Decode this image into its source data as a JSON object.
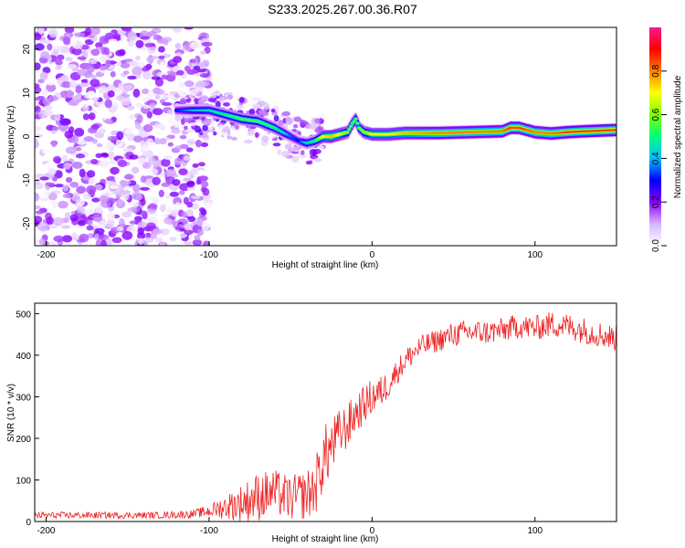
{
  "title": "S233.2025.267.00.36.R07",
  "chart_data": [
    {
      "type": "heatmap",
      "title": "S233.2025.267.00.36.R07",
      "xlabel": "Height of straight line (km)",
      "ylabel": "Frequency (Hz)",
      "xlim": [
        -207,
        150
      ],
      "ylim": [
        -25,
        25
      ],
      "xticks": [
        -200,
        -100,
        0,
        100
      ],
      "yticks": [
        -20,
        -10,
        0,
        10,
        20
      ],
      "colorbar": {
        "label": "Normalized spectral amplitude",
        "range": [
          0,
          1
        ],
        "ticks": [
          "0.0",
          "0.2",
          "0.4",
          "0.6",
          "0.8"
        ],
        "colormap": [
          "#ffffff",
          "#d8b4fe",
          "#8b00ff",
          "#0000ff",
          "#00bfff",
          "#00ff7f",
          "#7fff00",
          "#ffff00",
          "#ff8000",
          "#ff0000",
          "#ff1493"
        ]
      },
      "ridge": {
        "x": [
          -120,
          -110,
          -100,
          -90,
          -80,
          -70,
          -60,
          -55,
          -50,
          -45,
          -40,
          -35,
          -30,
          -25,
          -20,
          -15,
          -12,
          -10,
          -8,
          -5,
          0,
          10,
          20,
          40,
          60,
          80,
          85,
          90,
          100,
          110,
          120,
          130,
          150
        ],
        "freq": [
          6,
          6,
          6,
          5,
          4,
          3.5,
          2,
          1,
          0,
          -1,
          -1.5,
          -1,
          0,
          0,
          0.5,
          1,
          3,
          4,
          2,
          1,
          0.5,
          0.5,
          0.8,
          0.8,
          1,
          1.2,
          2,
          2,
          1,
          0.7,
          1,
          1.2,
          1.5
        ],
        "amplitude": [
          0.3,
          0.4,
          0.45,
          0.5,
          0.55,
          0.55,
          0.5,
          0.45,
          0.35,
          0.3,
          0.45,
          0.5,
          0.7,
          0.75,
          0.7,
          0.6,
          0.55,
          0.55,
          0.55,
          0.6,
          0.7,
          0.7,
          0.75,
          0.8,
          0.8,
          0.8,
          0.85,
          0.85,
          0.8,
          0.8,
          0.85,
          0.85,
          0.85
        ]
      },
      "noise_region_x": [
        -207,
        -100
      ]
    },
    {
      "type": "line",
      "title": "",
      "xlabel": "Height of straight line (km)",
      "ylabel": "SNR (10 * v/v)",
      "xlim": [
        -207,
        150
      ],
      "ylim": [
        0,
        525
      ],
      "xticks": [
        -200,
        -100,
        0,
        100
      ],
      "yticks": [
        0,
        100,
        200,
        300,
        400,
        500
      ],
      "series": [
        {
          "name": "SNR",
          "color": "#ee2222",
          "x": [
            -207,
            -190,
            -170,
            -150,
            -130,
            -110,
            -100,
            -90,
            -80,
            -70,
            -60,
            -50,
            -40,
            -35,
            -30,
            -25,
            -20,
            -15,
            -10,
            -5,
            0,
            5,
            10,
            15,
            20,
            25,
            30,
            40,
            50,
            60,
            70,
            80,
            90,
            100,
            110,
            120,
            130,
            140,
            150
          ],
          "y": [
            15,
            15,
            15,
            15,
            15,
            18,
            25,
            35,
            45,
            60,
            70,
            55,
            65,
            80,
            150,
            180,
            210,
            230,
            260,
            280,
            300,
            310,
            330,
            360,
            385,
            405,
            420,
            435,
            450,
            455,
            455,
            460,
            470,
            465,
            475,
            470,
            460,
            450,
            440
          ],
          "noise_amplitude": [
            8,
            8,
            8,
            8,
            8,
            10,
            15,
            30,
            45,
            60,
            55,
            55,
            60,
            70,
            80,
            70,
            60,
            55,
            50,
            45,
            45,
            40,
            35,
            30,
            30,
            30,
            28,
            28,
            30,
            30,
            30,
            30,
            30,
            30,
            32,
            32,
            32,
            32,
            32
          ]
        }
      ]
    }
  ]
}
